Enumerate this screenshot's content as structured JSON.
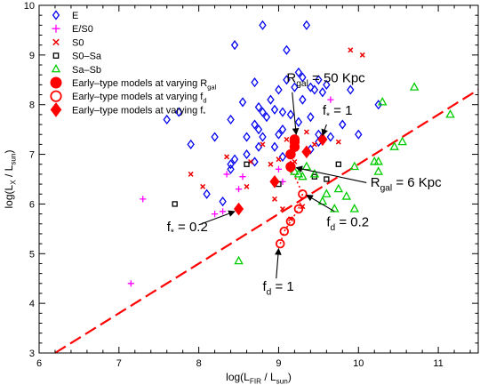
{
  "chart_data": {
    "type": "scatter",
    "xlabel_parts": [
      "log(L",
      "FIR",
      " / L",
      "sun",
      ")"
    ],
    "ylabel_parts": [
      "log(L",
      "X",
      " / L",
      "sun",
      ")"
    ],
    "xlim": [
      6,
      11.5
    ],
    "ylim": [
      3,
      10
    ],
    "xticks": [
      6,
      7,
      8,
      9,
      10,
      11
    ],
    "yticks": [
      3,
      4,
      5,
      6,
      7,
      8,
      9,
      10
    ],
    "legend_position": "top-left",
    "legend": [
      {
        "id": "E",
        "label": "E",
        "marker": "diamond-open",
        "color": "#0000ee"
      },
      {
        "id": "ES0",
        "label": "E/S0",
        "marker": "plus",
        "color": "#ff00ff"
      },
      {
        "id": "S0",
        "label": "S0",
        "marker": "cross",
        "color": "#ee0000"
      },
      {
        "id": "S0Sa",
        "label": "S0–Sa",
        "marker": "square-open",
        "color": "#000000"
      },
      {
        "id": "SaSb",
        "label": "Sa–Sb",
        "marker": "triangle-open",
        "color": "#00cc00"
      },
      {
        "id": "Rgal",
        "label_parts": [
          "Early–type models at varying R",
          "gal",
          ""
        ],
        "marker": "circle-filled",
        "color": "#ff0000"
      },
      {
        "id": "fd",
        "label_parts": [
          "Early–type models at varying f",
          "d",
          ""
        ],
        "marker": "circle-open",
        "color": "#ff0000"
      },
      {
        "id": "fstar",
        "label_parts": [
          "Early–type models at varying f",
          "*",
          ""
        ],
        "marker": "diamond-filled",
        "color": "#ff0000"
      }
    ],
    "series": [
      {
        "id": "E",
        "points": [
          [
            8.8,
            9.6
          ],
          [
            9.35,
            9.6
          ],
          [
            8.45,
            9.2
          ],
          [
            9.1,
            9.1
          ],
          [
            9.25,
            8.65
          ],
          [
            9.3,
            8.55
          ],
          [
            9.5,
            8.5
          ],
          [
            8.7,
            8.45
          ],
          [
            9.1,
            8.5
          ],
          [
            9.4,
            8.35
          ],
          [
            9.45,
            8.3
          ],
          [
            9.55,
            8.25
          ],
          [
            9.6,
            8.4
          ],
          [
            9.2,
            8.35
          ],
          [
            9.0,
            8.3
          ],
          [
            9.3,
            8.1
          ],
          [
            9.9,
            8.3
          ],
          [
            8.9,
            8.1
          ],
          [
            8.55,
            8.05
          ],
          [
            8.75,
            7.95
          ],
          [
            8.8,
            7.85
          ],
          [
            8.95,
            7.9
          ],
          [
            9.05,
            7.85
          ],
          [
            8.85,
            7.75
          ],
          [
            9.15,
            7.8
          ],
          [
            9.4,
            7.75
          ],
          [
            9.25,
            7.65
          ],
          [
            8.4,
            7.7
          ],
          [
            8.7,
            7.6
          ],
          [
            9.05,
            7.5
          ],
          [
            9.8,
            7.6
          ],
          [
            7.6,
            7.7
          ],
          [
            10.25,
            8.0
          ],
          [
            8.75,
            7.5
          ],
          [
            8.6,
            7.35
          ],
          [
            8.8,
            7.35
          ],
          [
            9.0,
            7.4
          ],
          [
            9.5,
            7.4
          ],
          [
            9.65,
            7.35
          ],
          [
            8.2,
            7.35
          ],
          [
            7.9,
            7.2
          ],
          [
            8.75,
            7.15
          ],
          [
            8.95,
            7.15
          ],
          [
            9.2,
            7.2
          ],
          [
            9.5,
            7.25
          ],
          [
            8.6,
            7.0
          ],
          [
            8.45,
            6.9
          ],
          [
            8.4,
            6.7
          ],
          [
            8.7,
            6.85
          ],
          [
            10.0,
            7.4
          ],
          [
            8.1,
            6.2
          ],
          [
            8.3,
            6.05
          ],
          [
            7.75,
            7.85
          ],
          [
            9.05,
            6.95
          ],
          [
            9.4,
            7.1
          ],
          [
            8.4,
            6.8
          ]
        ]
      },
      {
        "id": "ES0",
        "points": [
          [
            7.15,
            4.4
          ],
          [
            7.3,
            6.1
          ],
          [
            8.2,
            5.8
          ],
          [
            8.3,
            5.85
          ],
          [
            8.5,
            6.3
          ],
          [
            9.0,
            6.7
          ],
          [
            9.05,
            6.45
          ],
          [
            9.65,
            8.1
          ],
          [
            8.55,
            6.55
          ],
          [
            8.35,
            6.6
          ]
        ]
      },
      {
        "id": "S0",
        "points": [
          [
            9.9,
            9.1
          ],
          [
            10.05,
            9.0
          ],
          [
            8.35,
            6.95
          ],
          [
            8.65,
            6.85
          ],
          [
            8.9,
            6.8
          ],
          [
            9.0,
            6.9
          ],
          [
            9.2,
            6.85
          ],
          [
            9.45,
            7.2
          ],
          [
            9.75,
            7.25
          ],
          [
            9.35,
            7.45
          ],
          [
            9.1,
            7.3
          ],
          [
            7.9,
            6.6
          ],
          [
            8.05,
            6.35
          ],
          [
            8.6,
            6.35
          ],
          [
            8.95,
            6.1
          ],
          [
            9.05,
            5.9
          ],
          [
            9.3,
            5.95
          ],
          [
            9.15,
            5.7
          ],
          [
            8.8,
            7.2
          ]
        ]
      },
      {
        "id": "S0Sa",
        "points": [
          [
            7.7,
            6.0
          ],
          [
            8.6,
            6.8
          ],
          [
            9.0,
            6.4
          ],
          [
            9.75,
            6.8
          ],
          [
            9.6,
            6.5
          ],
          [
            9.45,
            6.55
          ]
        ]
      },
      {
        "id": "SaSb",
        "points": [
          [
            10.3,
            8.05
          ],
          [
            10.7,
            8.35
          ],
          [
            11.15,
            7.8
          ],
          [
            10.55,
            7.25
          ],
          [
            10.45,
            7.15
          ],
          [
            10.2,
            6.85
          ],
          [
            10.25,
            6.85
          ],
          [
            9.95,
            6.75
          ],
          [
            9.35,
            6.75
          ],
          [
            9.45,
            6.6
          ],
          [
            9.2,
            6.65
          ],
          [
            9.3,
            6.55
          ],
          [
            9.6,
            6.2
          ],
          [
            9.75,
            6.3
          ],
          [
            9.85,
            6.15
          ],
          [
            9.7,
            5.9
          ],
          [
            9.55,
            6.05
          ],
          [
            9.25,
            6.6
          ],
          [
            8.5,
            4.85
          ],
          [
            10.25,
            6.65
          ],
          [
            9.95,
            5.9
          ]
        ]
      },
      {
        "id": "Rgal",
        "points": [
          [
            9.15,
            6.75
          ],
          [
            9.15,
            7.0
          ],
          [
            9.2,
            7.15
          ],
          [
            9.2,
            7.25
          ],
          [
            9.2,
            7.3
          ]
        ]
      },
      {
        "id": "fd",
        "points": [
          [
            9.02,
            5.2
          ],
          [
            9.07,
            5.45
          ],
          [
            9.15,
            5.65
          ],
          [
            9.25,
            5.9
          ],
          [
            9.3,
            6.2
          ]
        ]
      },
      {
        "id": "fstar",
        "points": [
          [
            8.5,
            5.9
          ],
          [
            8.95,
            6.45
          ],
          [
            9.15,
            6.75
          ],
          [
            9.35,
            7.05
          ],
          [
            9.55,
            7.3
          ]
        ]
      }
    ],
    "dashed_line": {
      "color": "#ff0000",
      "points": [
        [
          6.2,
          3.0
        ],
        [
          11.5,
          8.3
        ]
      ]
    },
    "dotted_path": {
      "color": "#ff0000",
      "points": [
        [
          9.02,
          5.2
        ],
        [
          9.07,
          5.45
        ],
        [
          9.15,
          5.65
        ],
        [
          9.25,
          5.9
        ],
        [
          9.3,
          6.2
        ],
        [
          9.15,
          6.75
        ]
      ]
    },
    "annotations": [
      {
        "id": "rgal50",
        "parts": [
          "R",
          "gal",
          " = 50 Kpc"
        ],
        "text_at": [
          9.1,
          8.45
        ],
        "arrow_from": [
          9.17,
          8.25
        ],
        "arrow_to": [
          9.22,
          7.4
        ]
      },
      {
        "id": "fstar1",
        "parts": [
          "f",
          "*",
          " = 1"
        ],
        "text_at": [
          9.55,
          7.8
        ],
        "arrow_from": [
          9.6,
          7.6
        ],
        "arrow_to": [
          9.55,
          7.38
        ]
      },
      {
        "id": "rgal6",
        "parts": [
          "R",
          "gal",
          " = 6 Kpc"
        ],
        "text_at": [
          10.15,
          6.35
        ],
        "arrow_from": [
          10.1,
          6.43
        ],
        "arrow_to": [
          9.22,
          6.73
        ]
      },
      {
        "id": "fd02",
        "parts": [
          "f",
          "d",
          " = 0.2"
        ],
        "text_at": [
          9.6,
          5.55
        ],
        "arrow_from": [
          9.7,
          5.85
        ],
        "arrow_to": [
          9.35,
          6.18
        ]
      },
      {
        "id": "fstar02",
        "parts": [
          "f",
          "*",
          " = 0.2"
        ],
        "text_at": [
          7.6,
          5.45
        ],
        "arrow_from": [
          8.0,
          5.58
        ],
        "arrow_to": [
          8.45,
          5.85
        ]
      },
      {
        "id": "fd1",
        "parts": [
          "f",
          "d",
          " = 1"
        ],
        "text_at": [
          8.8,
          4.25
        ],
        "arrow_from": [
          8.97,
          4.5
        ],
        "arrow_to": [
          9.0,
          5.1
        ]
      }
    ]
  }
}
